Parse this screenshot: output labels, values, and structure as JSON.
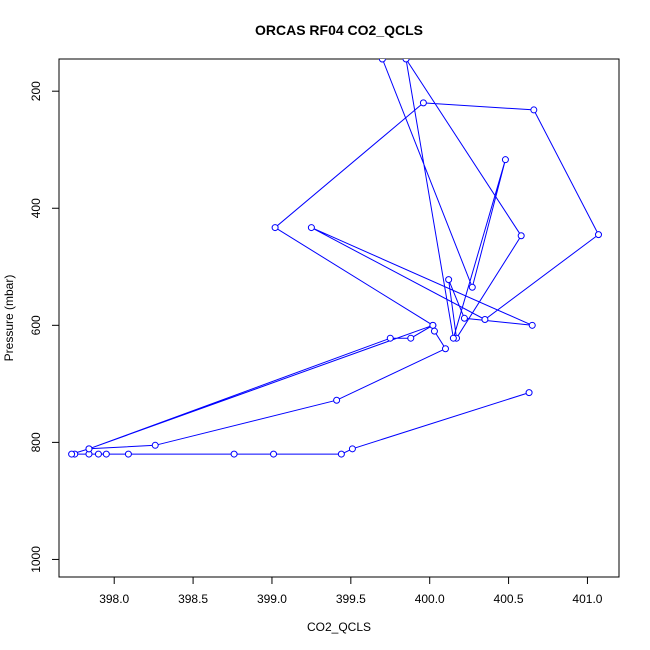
{
  "chart_data": {
    "type": "line",
    "title": "ORCAS RF04 CO2_QCLS",
    "xlabel": "CO2_QCLS",
    "ylabel": "Pressure (mbar)",
    "xlim": [
      397.65,
      401.2
    ],
    "ylim": [
      1030,
      145
    ],
    "y_reversed": true,
    "x_ticks": [
      398.0,
      398.5,
      399.0,
      399.5,
      400.0,
      400.5,
      401.0
    ],
    "x_tick_labels": [
      "398.0",
      "398.5",
      "399.0",
      "399.5",
      "400.0",
      "400.5",
      "401.0"
    ],
    "y_ticks": [
      200,
      400,
      600,
      800,
      1000
    ],
    "y_tick_labels": [
      "200",
      "400",
      "600",
      "800",
      "1000"
    ],
    "grid": false,
    "marker": "open-circle",
    "series": [
      {
        "color": "#0000ff",
        "x": [
          400.63,
          399.51,
          399.44,
          399.01,
          398.76,
          398.09,
          397.95,
          397.9,
          397.84,
          397.75,
          397.73,
          397.84,
          398.26,
          399.41,
          400.1,
          400.03,
          400.02,
          399.88,
          399.75,
          397.84,
          400.02,
          399.02,
          399.96,
          400.66,
          401.07,
          400.35,
          399.25,
          400.65,
          400.22,
          400.12,
          400.17,
          400.58,
          399.85,
          400.15,
          400.48,
          400.27,
          399.7
        ],
        "y": [
          715,
          811,
          820,
          820,
          820,
          820,
          820,
          820,
          820,
          820,
          820,
          811,
          805,
          728,
          640,
          610,
          600,
          622,
          622,
          811,
          600,
          433,
          220,
          232,
          445,
          590,
          433,
          600,
          588,
          522,
          622,
          447,
          145,
          622,
          317,
          535,
          145
        ]
      }
    ]
  }
}
